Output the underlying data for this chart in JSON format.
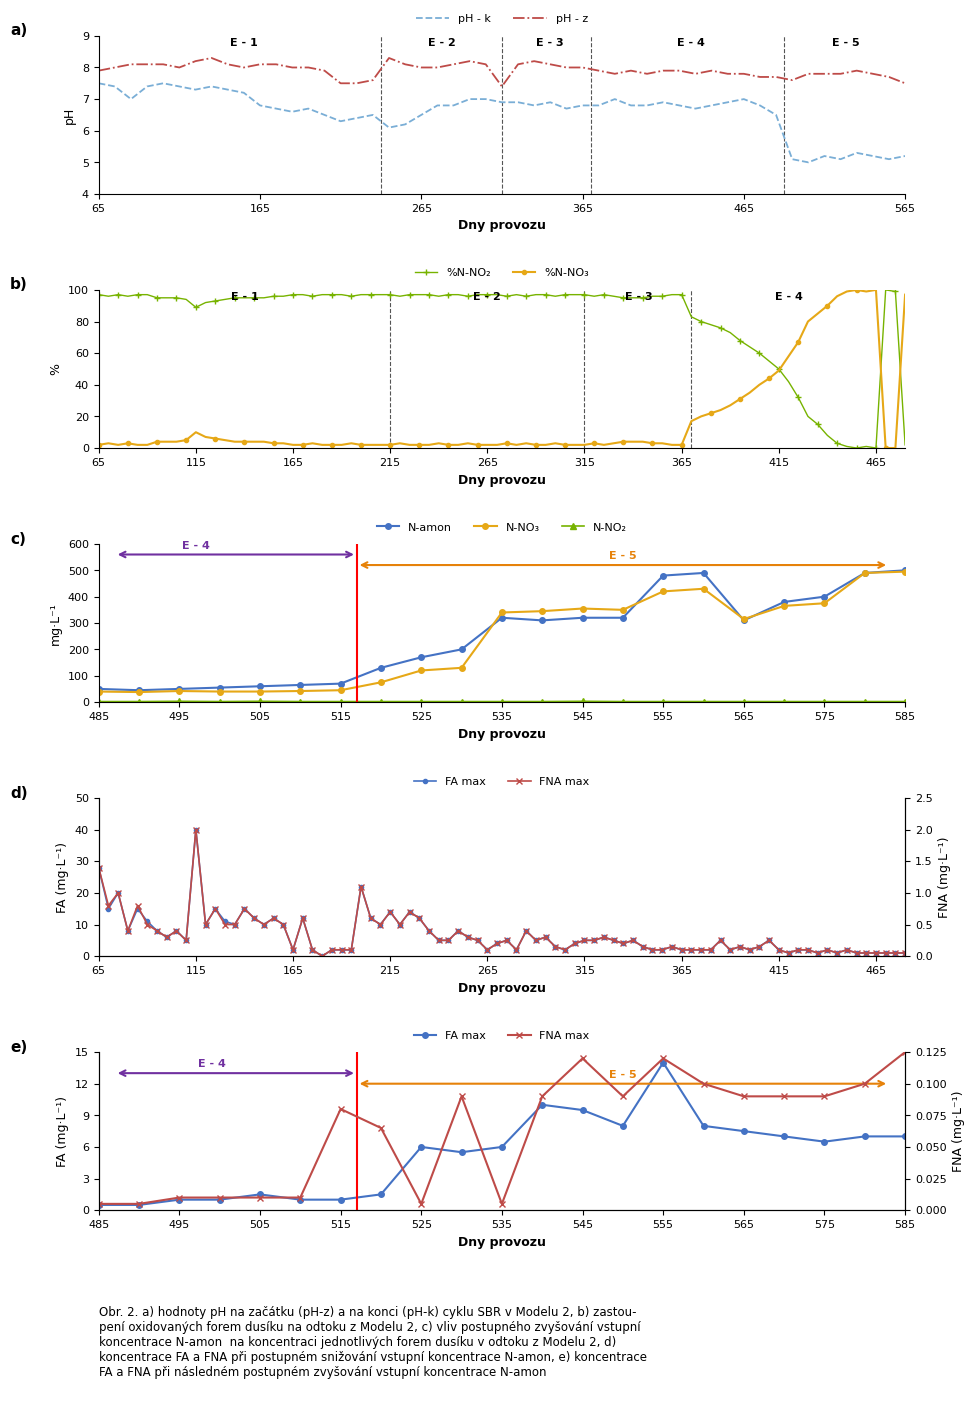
{
  "panel_a": {
    "label": "a)",
    "xlabel": "Dny provozu",
    "ylabel": "pH",
    "xlim": [
      65,
      565
    ],
    "ylim": [
      4,
      9
    ],
    "yticks": [
      4,
      5,
      6,
      7,
      8,
      9
    ],
    "xticks": [
      65,
      165,
      265,
      365,
      465,
      565
    ],
    "vlines": [
      240,
      315,
      370,
      490
    ],
    "E_labels": [
      [
        "E - 1",
        155
      ],
      [
        "E - 2",
        278
      ],
      [
        "E - 3",
        345
      ],
      [
        "E - 4",
        432
      ],
      [
        "E - 5",
        528
      ]
    ],
    "legend": [
      "pH - k",
      "pH - z"
    ],
    "ph_k_color": "#7aaed6",
    "ph_z_color": "#be4b48",
    "ph_k_x": [
      65,
      75,
      85,
      95,
      105,
      115,
      125,
      135,
      145,
      155,
      165,
      175,
      185,
      195,
      205,
      215,
      225,
      235,
      245,
      255,
      265,
      275,
      285,
      295,
      305,
      315,
      325,
      335,
      345,
      355,
      365,
      375,
      385,
      395,
      405,
      415,
      425,
      435,
      445,
      455,
      465,
      475,
      485,
      495,
      505,
      515,
      525,
      535,
      545,
      555,
      565
    ],
    "ph_k_y": [
      7.5,
      7.4,
      7.0,
      7.4,
      7.5,
      7.4,
      7.3,
      7.4,
      7.3,
      7.2,
      6.8,
      6.7,
      6.6,
      6.7,
      6.5,
      6.3,
      6.4,
      6.5,
      6.1,
      6.2,
      6.5,
      6.8,
      6.8,
      7.0,
      7.0,
      6.9,
      6.9,
      6.8,
      6.9,
      6.7,
      6.8,
      6.8,
      7.0,
      6.8,
      6.8,
      6.9,
      6.8,
      6.7,
      6.8,
      6.9,
      7.0,
      6.8,
      6.5,
      5.1,
      5.0,
      5.2,
      5.1,
      5.3,
      5.2,
      5.1,
      5.2
    ],
    "ph_z_x": [
      65,
      75,
      85,
      95,
      105,
      115,
      125,
      135,
      145,
      155,
      165,
      175,
      185,
      195,
      205,
      215,
      225,
      235,
      245,
      255,
      265,
      275,
      285,
      295,
      305,
      315,
      325,
      335,
      345,
      355,
      365,
      375,
      385,
      395,
      405,
      415,
      425,
      435,
      445,
      455,
      465,
      475,
      485,
      495,
      505,
      515,
      525,
      535,
      545,
      555,
      565
    ],
    "ph_z_y": [
      7.9,
      8.0,
      8.1,
      8.1,
      8.1,
      8.0,
      8.2,
      8.3,
      8.1,
      8.0,
      8.1,
      8.1,
      8.0,
      8.0,
      7.9,
      7.5,
      7.5,
      7.6,
      8.3,
      8.1,
      8.0,
      8.0,
      8.1,
      8.2,
      8.1,
      7.4,
      8.1,
      8.2,
      8.1,
      8.0,
      8.0,
      7.9,
      7.8,
      7.9,
      7.8,
      7.9,
      7.9,
      7.8,
      7.9,
      7.8,
      7.8,
      7.7,
      7.7,
      7.6,
      7.8,
      7.8,
      7.8,
      7.9,
      7.8,
      7.7,
      7.5
    ]
  },
  "panel_b": {
    "label": "b)",
    "xlabel": "Dny provozu",
    "ylabel": "%",
    "xlim": [
      65,
      480
    ],
    "ylim": [
      0,
      100
    ],
    "yticks": [
      0,
      20,
      40,
      60,
      80,
      100
    ],
    "xticks": [
      65,
      115,
      165,
      215,
      265,
      315,
      365,
      415,
      465
    ],
    "vlines": [
      215,
      315,
      370
    ],
    "E_labels": [
      [
        "E - 1",
        140
      ],
      [
        "E - 2",
        265
      ],
      [
        "E - 3",
        343
      ],
      [
        "E - 4",
        420
      ]
    ],
    "legend": [
      "%N-NO₂",
      "%N-NO₃"
    ],
    "no2_color": "#77b300",
    "no3_color": "#e6a817",
    "no2_x": [
      65,
      70,
      75,
      80,
      85,
      90,
      95,
      100,
      105,
      110,
      115,
      120,
      125,
      130,
      135,
      140,
      145,
      150,
      155,
      160,
      165,
      170,
      175,
      180,
      185,
      190,
      195,
      200,
      205,
      210,
      215,
      220,
      225,
      230,
      235,
      240,
      245,
      250,
      255,
      260,
      265,
      270,
      275,
      280,
      285,
      290,
      295,
      300,
      305,
      310,
      315,
      320,
      325,
      330,
      335,
      340,
      345,
      350,
      355,
      360,
      365,
      370,
      375,
      380,
      385,
      390,
      395,
      400,
      405,
      410,
      415,
      420,
      425,
      430,
      435,
      440,
      445,
      450,
      455,
      460,
      465,
      470,
      475,
      480
    ],
    "no2_y": [
      97,
      96,
      97,
      96,
      97,
      97,
      95,
      95,
      95,
      94,
      89,
      92,
      93,
      94,
      95,
      95,
      95,
      95,
      96,
      96,
      97,
      97,
      96,
      97,
      97,
      97,
      96,
      97,
      97,
      97,
      97,
      96,
      97,
      97,
      97,
      96,
      97,
      97,
      96,
      97,
      97,
      97,
      96,
      97,
      96,
      97,
      97,
      96,
      97,
      97,
      97,
      96,
      97,
      96,
      95,
      95,
      95,
      96,
      96,
      97,
      97,
      83,
      80,
      78,
      76,
      73,
      68,
      64,
      60,
      55,
      50,
      42,
      32,
      20,
      15,
      8,
      3,
      1,
      0,
      1,
      0,
      100,
      99,
      2
    ],
    "no3_x": [
      65,
      70,
      75,
      80,
      85,
      90,
      95,
      100,
      105,
      110,
      115,
      120,
      125,
      130,
      135,
      140,
      145,
      150,
      155,
      160,
      165,
      170,
      175,
      180,
      185,
      190,
      195,
      200,
      205,
      210,
      215,
      220,
      225,
      230,
      235,
      240,
      245,
      250,
      255,
      260,
      265,
      270,
      275,
      280,
      285,
      290,
      295,
      300,
      305,
      310,
      315,
      320,
      325,
      330,
      335,
      340,
      345,
      350,
      355,
      360,
      365,
      370,
      375,
      380,
      385,
      390,
      395,
      400,
      405,
      410,
      415,
      420,
      425,
      430,
      435,
      440,
      445,
      450,
      455,
      460,
      465,
      470,
      475,
      480
    ],
    "no3_y": [
      2,
      3,
      2,
      3,
      2,
      2,
      4,
      4,
      4,
      5,
      10,
      7,
      6,
      5,
      4,
      4,
      4,
      4,
      3,
      3,
      2,
      2,
      3,
      2,
      2,
      2,
      3,
      2,
      2,
      2,
      2,
      3,
      2,
      2,
      2,
      3,
      2,
      2,
      3,
      2,
      2,
      2,
      3,
      2,
      3,
      2,
      2,
      3,
      2,
      2,
      2,
      3,
      2,
      3,
      4,
      4,
      4,
      3,
      3,
      2,
      2,
      17,
      20,
      22,
      24,
      27,
      31,
      35,
      40,
      44,
      49,
      58,
      67,
      80,
      85,
      90,
      96,
      99,
      100,
      99,
      100,
      0,
      0,
      97
    ]
  },
  "panel_c": {
    "label": "c)",
    "xlabel": "Dny provozu",
    "ylabel": "mg·L⁻¹",
    "xlim": [
      485,
      585
    ],
    "ylim": [
      0,
      600
    ],
    "yticks": [
      0,
      100,
      200,
      300,
      400,
      500,
      600
    ],
    "xticks": [
      485,
      495,
      505,
      515,
      525,
      535,
      545,
      555,
      565,
      575,
      585
    ],
    "vline_red": 517,
    "E4_label": [
      "E - 4",
      497,
      560
    ],
    "E5_label": [
      "E - 5",
      537,
      520
    ],
    "legend": [
      "N-amon",
      "N-NO₃",
      "N-NO₂"
    ],
    "namon_color": "#4472c4",
    "nno3_color": "#e6a817",
    "nno2_color": "#77b300",
    "namon_x": [
      485,
      490,
      495,
      500,
      505,
      510,
      515,
      520,
      525,
      530,
      535,
      540,
      545,
      550,
      555,
      560,
      565,
      570,
      575,
      580,
      585
    ],
    "namon_y": [
      50,
      45,
      50,
      55,
      60,
      65,
      70,
      130,
      170,
      200,
      320,
      310,
      320,
      320,
      480,
      490,
      310,
      380,
      400,
      490,
      500
    ],
    "nno3_x": [
      485,
      490,
      495,
      500,
      505,
      510,
      515,
      520,
      525,
      530,
      535,
      540,
      545,
      550,
      555,
      560,
      565,
      570,
      575,
      580,
      585
    ],
    "nno3_y": [
      40,
      38,
      42,
      40,
      40,
      42,
      45,
      75,
      120,
      130,
      340,
      345,
      355,
      350,
      420,
      430,
      315,
      365,
      375,
      490,
      495
    ],
    "nno2_x": [
      485,
      490,
      495,
      500,
      505,
      510,
      515,
      520,
      525,
      530,
      535,
      540,
      545,
      550,
      555,
      560,
      565,
      570,
      575,
      580,
      585
    ],
    "nno2_y": [
      2,
      2,
      3,
      2,
      3,
      2,
      2,
      2,
      2,
      2,
      2,
      2,
      3,
      2,
      2,
      2,
      2,
      2,
      2,
      2,
      2
    ]
  },
  "panel_d": {
    "label": "d)",
    "xlabel": "Dny provozu",
    "ylabel_left": "FA (mg·L⁻¹)",
    "ylabel_right": "FNA (mg·L⁻¹)",
    "xlim": [
      65,
      480
    ],
    "ylim_left": [
      0,
      50
    ],
    "ylim_right": [
      0,
      2.5
    ],
    "yticks_left": [
      0,
      10,
      20,
      30,
      40,
      50
    ],
    "yticks_right": [
      0,
      0.5,
      1.0,
      1.5,
      2.0,
      2.5
    ],
    "xticks": [
      65,
      115,
      165,
      215,
      265,
      315,
      365,
      415,
      465
    ],
    "fa_color": "#4472c4",
    "fna_color": "#be4b48",
    "fa_x": [
      65,
      70,
      75,
      80,
      85,
      90,
      95,
      100,
      105,
      110,
      115,
      120,
      125,
      130,
      135,
      140,
      145,
      150,
      155,
      160,
      165,
      170,
      175,
      180,
      185,
      190,
      195,
      200,
      205,
      210,
      215,
      220,
      225,
      230,
      235,
      240,
      245,
      250,
      255,
      260,
      265,
      270,
      275,
      280,
      285,
      290,
      295,
      300,
      305,
      310,
      315,
      320,
      325,
      330,
      335,
      340,
      345,
      350,
      355,
      360,
      365,
      370,
      375,
      380,
      385,
      390,
      395,
      400,
      405,
      410,
      415,
      420,
      425,
      430,
      435,
      440,
      445,
      450,
      455,
      460,
      465,
      470,
      475,
      480
    ],
    "fa_y": [
      28,
      15,
      20,
      8,
      15,
      11,
      8,
      6,
      8,
      5,
      40,
      10,
      15,
      11,
      10,
      15,
      12,
      10,
      12,
      10,
      2,
      12,
      2,
      0,
      2,
      2,
      2,
      22,
      12,
      10,
      14,
      10,
      14,
      12,
      8,
      5,
      5,
      8,
      6,
      5,
      2,
      4,
      5,
      2,
      8,
      5,
      6,
      3,
      2,
      4,
      5,
      5,
      6,
      5,
      4,
      5,
      3,
      2,
      2,
      3,
      2,
      2,
      2,
      2,
      5,
      2,
      3,
      2,
      3,
      5,
      2,
      1,
      2,
      2,
      1,
      2,
      1,
      2,
      1,
      1,
      1,
      1,
      1,
      1
    ],
    "fna_x": [
      65,
      70,
      75,
      80,
      85,
      90,
      95,
      100,
      105,
      110,
      115,
      120,
      125,
      130,
      135,
      140,
      145,
      150,
      155,
      160,
      165,
      170,
      175,
      180,
      185,
      190,
      195,
      200,
      205,
      210,
      215,
      220,
      225,
      230,
      235,
      240,
      245,
      250,
      255,
      260,
      265,
      270,
      275,
      280,
      285,
      290,
      295,
      300,
      305,
      310,
      315,
      320,
      325,
      330,
      335,
      340,
      345,
      350,
      355,
      360,
      365,
      370,
      375,
      380,
      385,
      390,
      395,
      400,
      405,
      410,
      415,
      420,
      425,
      430,
      435,
      440,
      445,
      450,
      455,
      460,
      465,
      470,
      475,
      480
    ],
    "fna_y": [
      1.4,
      0.8,
      1.0,
      0.4,
      0.8,
      0.5,
      0.4,
      0.3,
      0.4,
      0.25,
      2.0,
      0.5,
      0.75,
      0.5,
      0.5,
      0.75,
      0.6,
      0.5,
      0.6,
      0.5,
      0.1,
      0.6,
      0.1,
      0.0,
      0.1,
      0.1,
      0.1,
      1.1,
      0.6,
      0.5,
      0.7,
      0.5,
      0.7,
      0.6,
      0.4,
      0.25,
      0.25,
      0.4,
      0.3,
      0.25,
      0.1,
      0.2,
      0.25,
      0.1,
      0.4,
      0.25,
      0.3,
      0.15,
      0.1,
      0.2,
      0.25,
      0.25,
      0.3,
      0.25,
      0.2,
      0.25,
      0.15,
      0.1,
      0.1,
      0.15,
      0.1,
      0.1,
      0.1,
      0.1,
      0.25,
      0.1,
      0.15,
      0.1,
      0.15,
      0.25,
      0.1,
      0.05,
      0.1,
      0.1,
      0.05,
      0.1,
      0.05,
      0.1,
      0.05,
      0.05,
      0.05,
      0.05,
      0.05,
      0.05
    ]
  },
  "panel_e": {
    "label": "e)",
    "xlabel": "Dny provozu",
    "ylabel_left": "FA (mg·L⁻¹)",
    "ylabel_right": "FNA (mg·L⁻¹)",
    "xlim": [
      485,
      585
    ],
    "ylim_left": [
      0,
      15
    ],
    "ylim_right": [
      0,
      0.125
    ],
    "yticks_left": [
      0,
      3,
      6,
      9,
      12,
      15
    ],
    "yticks_right": [
      0,
      0.025,
      0.05,
      0.075,
      0.1,
      0.125
    ],
    "vline_red": 517,
    "E4_label": [
      "E - 4",
      497,
      13
    ],
    "E5_label": [
      "E - 5",
      537,
      12
    ],
    "xticks": [
      485,
      495,
      505,
      515,
      525,
      535,
      545,
      555,
      565,
      575,
      585
    ],
    "fa_color": "#4472c4",
    "fna_color": "#be4b48",
    "fa_x": [
      485,
      490,
      495,
      500,
      505,
      510,
      515,
      520,
      525,
      530,
      535,
      540,
      545,
      550,
      555,
      560,
      565,
      570,
      575,
      580,
      585
    ],
    "fa_y": [
      0.5,
      0.5,
      1.0,
      1.0,
      1.5,
      1.0,
      1.0,
      1.5,
      6.0,
      5.5,
      6.0,
      10.0,
      9.5,
      8.0,
      14.0,
      8.0,
      7.5,
      7.0,
      6.5,
      7.0,
      7.0
    ],
    "fna_x": [
      485,
      490,
      495,
      500,
      505,
      510,
      515,
      520,
      525,
      530,
      535,
      540,
      545,
      550,
      555,
      560,
      565,
      570,
      575,
      580,
      585
    ],
    "fna_y": [
      0.005,
      0.005,
      0.01,
      0.01,
      0.01,
      0.01,
      0.08,
      0.065,
      0.005,
      0.09,
      0.005,
      0.09,
      0.12,
      0.09,
      0.12,
      0.1,
      0.09,
      0.09,
      0.09,
      0.1,
      0.125
    ]
  },
  "caption": "Obr. 2. a) hodnoty pH na začátku (pH-z) a na konci (pH-k) cyklu SBR v Modelu 2, b) zastou-\npení oxidovaných forem dusíku na odtoku z Modelu 2, c) vliv postupného zvyšování vstupní\nkoncentrace N-amon  na koncentraci jednotlivých forem dusíku v odtoku z Modelu 2, d)\nkoncentrace FA a FNA při postupném snižování vstupní koncentrace N-amon, e) koncentrace\nFA a FNA při následném postupném zvyšování vstupní koncentrace N-amon",
  "bg_color": "#ffffff"
}
